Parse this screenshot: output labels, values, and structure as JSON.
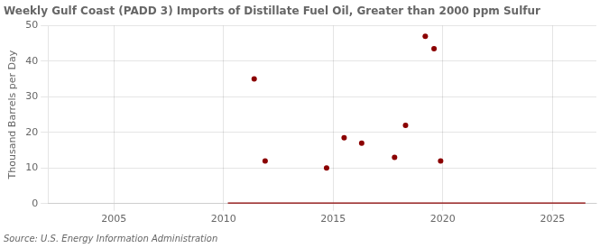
{
  "chart_data": {
    "type": "scatter",
    "title": "Weekly Gulf Coast (PADD 3) Imports of Distillate Fuel Oil, Greater than 2000 ppm Sulfur",
    "ylabel": "Thousand Barrels per Day",
    "source": "Source: U.S. Energy Information Administration",
    "xlim": [
      2002,
      2027
    ],
    "ylim": [
      0,
      50
    ],
    "xticks": [
      2005,
      2010,
      2015,
      2020,
      2025
    ],
    "yticks": [
      0,
      10,
      20,
      30,
      40,
      50
    ],
    "grid": true,
    "series": [
      {
        "type": "scatter",
        "color": "#8b0000",
        "x": [
          2011.4,
          2011.9,
          2014.7,
          2015.5,
          2016.3,
          2017.8,
          2018.3,
          2019.2,
          2019.6,
          2019.9
        ],
        "values": [
          35.0,
          12.0,
          10.0,
          18.5,
          17.0,
          13.0,
          22.0,
          47.0,
          43.5,
          12.0
        ]
      },
      {
        "type": "line",
        "color": "#8b0000",
        "x": [
          2010.2,
          2026.5
        ],
        "values": [
          0,
          0
        ]
      }
    ]
  }
}
